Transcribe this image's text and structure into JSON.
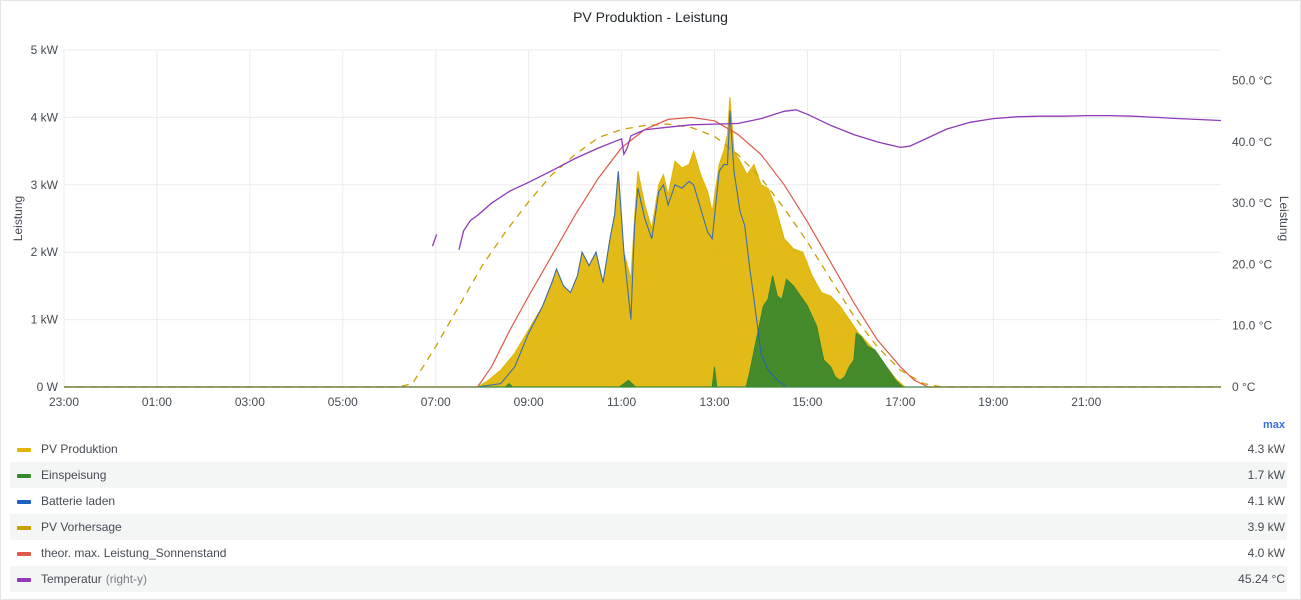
{
  "panel": {
    "title": "PV Produktion - Leistung"
  },
  "chart_data": {
    "type": "area",
    "title": "PV Produktion - Leistung",
    "y_left": {
      "label": "Leistung",
      "range": [
        0,
        5
      ],
      "ticks": [
        "0 W",
        "1 kW",
        "2 kW",
        "3 kW",
        "4 kW",
        "5 kW"
      ]
    },
    "y_right": {
      "label": "Leistung",
      "range": [
        0,
        55
      ],
      "ticks": [
        "0 °C",
        "10.0 °C",
        "20.0 °C",
        "30.0 °C",
        "40.0 °C",
        "50.0 °C"
      ]
    },
    "x_range": [
      -1,
      23.9
    ],
    "x_ticks": [
      {
        "hour": -1,
        "label": "23:00"
      },
      {
        "hour": 1,
        "label": "01:00"
      },
      {
        "hour": 3,
        "label": "03:00"
      },
      {
        "hour": 5,
        "label": "05:00"
      },
      {
        "hour": 7,
        "label": "07:00"
      },
      {
        "hour": 9,
        "label": "09:00"
      },
      {
        "hour": 11,
        "label": "11:00"
      },
      {
        "hour": 13,
        "label": "13:00"
      },
      {
        "hour": 15,
        "label": "15:00"
      },
      {
        "hour": 17,
        "label": "17:00"
      },
      {
        "hour": 19,
        "label": "19:00"
      },
      {
        "hour": 21,
        "label": "21:00"
      }
    ],
    "grid": true,
    "legend_placement": "bottom",
    "series": [
      {
        "name": "PV Produktion",
        "unit": "kW",
        "color": "#e0b400",
        "style": "area",
        "axis": "left",
        "max": "4.3 kW",
        "points": [
          [
            -1,
            0
          ],
          [
            7.9,
            0
          ],
          [
            8.1,
            0.08
          ],
          [
            8.4,
            0.25
          ],
          [
            8.7,
            0.5
          ],
          [
            9.0,
            0.85
          ],
          [
            9.3,
            1.2
          ],
          [
            9.5,
            1.55
          ],
          [
            9.6,
            1.75
          ],
          [
            9.75,
            1.5
          ],
          [
            9.9,
            1.4
          ],
          [
            10.05,
            1.65
          ],
          [
            10.15,
            2.0
          ],
          [
            10.3,
            1.8
          ],
          [
            10.45,
            2.0
          ],
          [
            10.6,
            1.55
          ],
          [
            10.75,
            2.2
          ],
          [
            10.85,
            2.55
          ],
          [
            10.93,
            3.2
          ],
          [
            11.05,
            2.0
          ],
          [
            11.2,
            1.6
          ],
          [
            11.28,
            2.5
          ],
          [
            11.35,
            3.2
          ],
          [
            11.5,
            2.7
          ],
          [
            11.65,
            2.35
          ],
          [
            11.8,
            3.0
          ],
          [
            11.9,
            3.15
          ],
          [
            12.0,
            2.85
          ],
          [
            12.15,
            3.35
          ],
          [
            12.3,
            3.25
          ],
          [
            12.45,
            3.3
          ],
          [
            12.55,
            3.5
          ],
          [
            12.7,
            3.15
          ],
          [
            12.85,
            2.9
          ],
          [
            12.95,
            2.6
          ],
          [
            13.1,
            3.3
          ],
          [
            13.2,
            3.5
          ],
          [
            13.28,
            3.75
          ],
          [
            13.33,
            4.3
          ],
          [
            13.42,
            3.5
          ],
          [
            13.55,
            3.35
          ],
          [
            13.7,
            3.15
          ],
          [
            13.85,
            3.3
          ],
          [
            14.0,
            3.0
          ],
          [
            14.15,
            2.95
          ],
          [
            14.3,
            2.7
          ],
          [
            14.5,
            2.2
          ],
          [
            14.7,
            2.05
          ],
          [
            14.9,
            2.0
          ],
          [
            15.1,
            1.65
          ],
          [
            15.3,
            1.4
          ],
          [
            15.5,
            1.35
          ],
          [
            15.7,
            1.2
          ],
          [
            15.9,
            1.0
          ],
          [
            16.1,
            0.8
          ],
          [
            16.3,
            0.65
          ],
          [
            16.5,
            0.5
          ],
          [
            16.7,
            0.3
          ],
          [
            16.9,
            0.12
          ],
          [
            17.1,
            0
          ],
          [
            23.9,
            0
          ]
        ]
      },
      {
        "name": "Einspeisung",
        "unit": "kW",
        "color": "#37872d",
        "style": "area",
        "axis": "left",
        "max": "1.7 kW",
        "points": [
          [
            -1,
            0
          ],
          [
            8.5,
            0
          ],
          [
            8.58,
            0.05
          ],
          [
            8.65,
            0
          ],
          [
            10.95,
            0
          ],
          [
            11.15,
            0.1
          ],
          [
            11.3,
            0
          ],
          [
            12.95,
            0
          ],
          [
            13.0,
            0.3
          ],
          [
            13.05,
            0
          ],
          [
            13.68,
            0
          ],
          [
            13.75,
            0.2
          ],
          [
            13.9,
            0.7
          ],
          [
            14.05,
            1.2
          ],
          [
            14.15,
            1.3
          ],
          [
            14.25,
            1.65
          ],
          [
            14.35,
            1.35
          ],
          [
            14.45,
            1.3
          ],
          [
            14.55,
            1.6
          ],
          [
            14.7,
            1.5
          ],
          [
            14.85,
            1.35
          ],
          [
            15.0,
            1.2
          ],
          [
            15.2,
            0.9
          ],
          [
            15.35,
            0.4
          ],
          [
            15.5,
            0.3
          ],
          [
            15.6,
            0.15
          ],
          [
            15.7,
            0.1
          ],
          [
            15.8,
            0.15
          ],
          [
            15.9,
            0.3
          ],
          [
            16.0,
            0.4
          ],
          [
            16.05,
            0.8
          ],
          [
            16.15,
            0.75
          ],
          [
            16.3,
            0.6
          ],
          [
            16.45,
            0.55
          ],
          [
            16.6,
            0.4
          ],
          [
            16.75,
            0.25
          ],
          [
            16.9,
            0.1
          ],
          [
            17.05,
            0
          ],
          [
            23.9,
            0
          ]
        ]
      },
      {
        "name": "Batterie laden",
        "unit": "kW",
        "color": "#1f60c4",
        "style": "line",
        "axis": "left",
        "max": "4.1 kW",
        "points": [
          [
            7.9,
            0
          ],
          [
            8.4,
            0.05
          ],
          [
            8.7,
            0.3
          ],
          [
            9.0,
            0.8
          ],
          [
            9.3,
            1.2
          ],
          [
            9.5,
            1.55
          ],
          [
            9.6,
            1.75
          ],
          [
            9.75,
            1.5
          ],
          [
            9.9,
            1.4
          ],
          [
            10.05,
            1.65
          ],
          [
            10.15,
            2.0
          ],
          [
            10.3,
            1.8
          ],
          [
            10.45,
            2.0
          ],
          [
            10.6,
            1.55
          ],
          [
            10.75,
            2.2
          ],
          [
            10.85,
            2.55
          ],
          [
            10.93,
            3.2
          ],
          [
            11.05,
            2.0
          ],
          [
            11.2,
            1.0
          ],
          [
            11.28,
            2.4
          ],
          [
            11.35,
            2.95
          ],
          [
            11.5,
            2.5
          ],
          [
            11.65,
            2.2
          ],
          [
            11.8,
            2.9
          ],
          [
            11.9,
            3.0
          ],
          [
            12.0,
            2.7
          ],
          [
            12.15,
            3.0
          ],
          [
            12.3,
            2.95
          ],
          [
            12.45,
            3.05
          ],
          [
            12.55,
            3.0
          ],
          [
            12.7,
            2.65
          ],
          [
            12.85,
            2.3
          ],
          [
            12.95,
            2.2
          ],
          [
            13.1,
            3.2
          ],
          [
            13.2,
            3.3
          ],
          [
            13.28,
            3.3
          ],
          [
            13.33,
            4.1
          ],
          [
            13.42,
            3.2
          ],
          [
            13.55,
            2.6
          ],
          [
            13.65,
            2.4
          ],
          [
            13.75,
            1.8
          ],
          [
            13.85,
            1.3
          ],
          [
            14.0,
            0.5
          ],
          [
            14.15,
            0.25
          ],
          [
            14.35,
            0.1
          ],
          [
            14.55,
            0
          ],
          [
            23.9,
            0
          ]
        ]
      },
      {
        "name": "PV Vorhersage",
        "unit": "kW",
        "color": "#c8a000",
        "style": "dashed",
        "axis": "left",
        "max": "3.9 kW",
        "points": [
          [
            -1,
            0
          ],
          [
            6.2,
            0
          ],
          [
            6.5,
            0.05
          ],
          [
            7.0,
            0.6
          ],
          [
            7.5,
            1.2
          ],
          [
            8.0,
            1.8
          ],
          [
            8.5,
            2.3
          ],
          [
            9.0,
            2.75
          ],
          [
            9.5,
            3.15
          ],
          [
            10.0,
            3.45
          ],
          [
            10.5,
            3.7
          ],
          [
            11.0,
            3.82
          ],
          [
            11.5,
            3.88
          ],
          [
            12.0,
            3.9
          ],
          [
            12.5,
            3.85
          ],
          [
            13.0,
            3.72
          ],
          [
            13.5,
            3.45
          ],
          [
            14.0,
            3.1
          ],
          [
            14.5,
            2.65
          ],
          [
            15.0,
            2.15
          ],
          [
            15.5,
            1.6
          ],
          [
            16.0,
            1.05
          ],
          [
            16.5,
            0.6
          ],
          [
            17.0,
            0.25
          ],
          [
            17.5,
            0.05
          ],
          [
            17.9,
            0
          ],
          [
            23.9,
            0
          ]
        ]
      },
      {
        "name": "theor. max. Leistung_Sonnenstand",
        "unit": "kW",
        "color": "#e05a4a",
        "style": "line",
        "axis": "left",
        "max": "4.0 kW",
        "points": [
          [
            -1,
            0
          ],
          [
            7.9,
            0
          ],
          [
            8.2,
            0.3
          ],
          [
            8.6,
            0.85
          ],
          [
            9.0,
            1.35
          ],
          [
            9.5,
            1.95
          ],
          [
            10.0,
            2.55
          ],
          [
            10.5,
            3.1
          ],
          [
            11.0,
            3.55
          ],
          [
            11.5,
            3.82
          ],
          [
            12.0,
            3.97
          ],
          [
            12.5,
            4.0
          ],
          [
            13.0,
            3.95
          ],
          [
            13.5,
            3.75
          ],
          [
            14.0,
            3.45
          ],
          [
            14.5,
            3.0
          ],
          [
            15.0,
            2.45
          ],
          [
            15.5,
            1.85
          ],
          [
            16.0,
            1.25
          ],
          [
            16.5,
            0.7
          ],
          [
            17.0,
            0.3
          ],
          [
            17.3,
            0.1
          ],
          [
            17.6,
            0
          ],
          [
            23.9,
            0
          ]
        ]
      },
      {
        "name": "Temperatur",
        "suffix": "(right-y)",
        "unit": "°C",
        "color": "#8f3bb8",
        "style": "line",
        "axis": "right",
        "max": "45.24 °C",
        "segments": [
          [
            [
              6.93,
              23.0
            ],
            [
              7.02,
              24.9
            ]
          ],
          [
            [
              7.5,
              22.4
            ],
            [
              7.6,
              25.5
            ],
            [
              7.75,
              27.2
            ],
            [
              7.9,
              28.0
            ],
            [
              8.2,
              30.0
            ],
            [
              8.6,
              32.0
            ],
            [
              9.0,
              33.4
            ],
            [
              9.5,
              35.3
            ],
            [
              10.0,
              37.3
            ],
            [
              10.5,
              39.0
            ],
            [
              10.9,
              40.2
            ],
            [
              11.0,
              40.5
            ],
            [
              11.05,
              38.0
            ],
            [
              11.12,
              39.0
            ],
            [
              11.2,
              41.0
            ],
            [
              11.5,
              42.0
            ],
            [
              12.0,
              42.4
            ],
            [
              12.5,
              42.8
            ],
            [
              13.0,
              42.9
            ],
            [
              13.5,
              43.0
            ],
            [
              14.0,
              43.8
            ],
            [
              14.5,
              45.0
            ],
            [
              14.75,
              45.24
            ],
            [
              15.0,
              44.5
            ],
            [
              15.5,
              42.7
            ],
            [
              16.0,
              41.2
            ],
            [
              16.5,
              40.0
            ],
            [
              17.0,
              39.1
            ],
            [
              17.2,
              39.3
            ],
            [
              17.6,
              40.7
            ],
            [
              18.0,
              42.1
            ],
            [
              18.5,
              43.2
            ],
            [
              19.0,
              43.8
            ],
            [
              19.5,
              44.1
            ],
            [
              20.0,
              44.2
            ],
            [
              20.5,
              44.2
            ],
            [
              21.0,
              44.3
            ],
            [
              21.5,
              44.3
            ],
            [
              22.0,
              44.2
            ],
            [
              22.5,
              44.0
            ],
            [
              23.0,
              43.8
            ],
            [
              23.9,
              43.5
            ]
          ]
        ]
      }
    ]
  },
  "legend": {
    "header_label": "max",
    "items": [
      {
        "label": "PV Produktion",
        "suffix": "",
        "value": "4.3 kW",
        "color": "#e0b400"
      },
      {
        "label": "Einspeisung",
        "suffix": "",
        "value": "1.7 kW",
        "color": "#37872d"
      },
      {
        "label": "Batterie laden",
        "suffix": "",
        "value": "4.1 kW",
        "color": "#1f60c4"
      },
      {
        "label": "PV Vorhersage",
        "suffix": "",
        "value": "3.9 kW",
        "color": "#c8a000"
      },
      {
        "label": "theor. max. Leistung_Sonnenstand",
        "suffix": "",
        "value": "4.0 kW",
        "color": "#e05a4a"
      },
      {
        "label": "Temperatur",
        "suffix": "(right-y)",
        "value": "45.24 °C",
        "color": "#8f3bb8"
      }
    ]
  }
}
